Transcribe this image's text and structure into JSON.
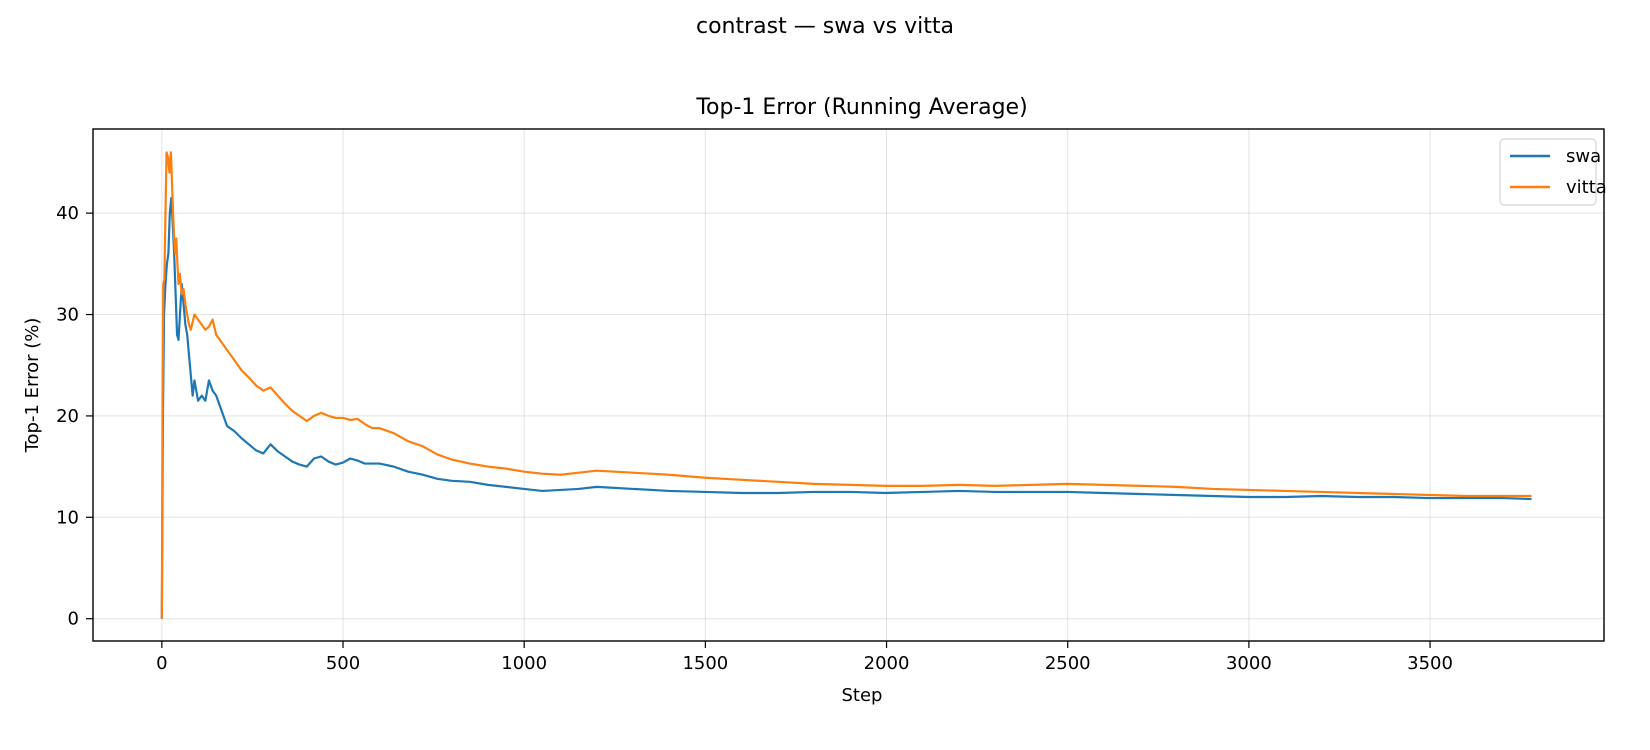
{
  "figure": {
    "suptitle": "contrast — swa vs vitta"
  },
  "chart_data": {
    "type": "line",
    "title": "Top-1 Error (Running Average)",
    "xlabel": "Step",
    "ylabel": "Top-1 Error (%)",
    "xlim": [
      -190,
      3980
    ],
    "ylim": [
      -2.2,
      48.3
    ],
    "xticks": [
      0,
      500,
      1000,
      1500,
      2000,
      2500,
      3000,
      3500
    ],
    "yticks": [
      0,
      10,
      20,
      30,
      40
    ],
    "grid": true,
    "legend_position": "top-right",
    "series": [
      {
        "name": "swa",
        "color": "#1f77b4",
        "points": [
          [
            0,
            0
          ],
          [
            3,
            20
          ],
          [
            6,
            30
          ],
          [
            10,
            33
          ],
          [
            14,
            35
          ],
          [
            18,
            36
          ],
          [
            22,
            40
          ],
          [
            26,
            41.5
          ],
          [
            30,
            39
          ],
          [
            34,
            36
          ],
          [
            38,
            32
          ],
          [
            42,
            28
          ],
          [
            46,
            27.5
          ],
          [
            50,
            30
          ],
          [
            55,
            33
          ],
          [
            60,
            31
          ],
          [
            65,
            29
          ],
          [
            70,
            28
          ],
          [
            75,
            26
          ],
          [
            80,
            24
          ],
          [
            85,
            22
          ],
          [
            90,
            23.5
          ],
          [
            95,
            22.5
          ],
          [
            100,
            21.5
          ],
          [
            110,
            22
          ],
          [
            120,
            21.5
          ],
          [
            130,
            23.5
          ],
          [
            140,
            22.5
          ],
          [
            150,
            22
          ],
          [
            160,
            21
          ],
          [
            170,
            20
          ],
          [
            180,
            19
          ],
          [
            200,
            18.5
          ],
          [
            220,
            17.8
          ],
          [
            240,
            17.2
          ],
          [
            260,
            16.6
          ],
          [
            280,
            16.3
          ],
          [
            300,
            17.2
          ],
          [
            320,
            16.5
          ],
          [
            340,
            16
          ],
          [
            360,
            15.5
          ],
          [
            380,
            15.2
          ],
          [
            400,
            15
          ],
          [
            420,
            15.8
          ],
          [
            440,
            16
          ],
          [
            460,
            15.5
          ],
          [
            480,
            15.2
          ],
          [
            500,
            15.4
          ],
          [
            520,
            15.8
          ],
          [
            540,
            15.6
          ],
          [
            560,
            15.3
          ],
          [
            600,
            15.3
          ],
          [
            640,
            15
          ],
          [
            680,
            14.5
          ],
          [
            720,
            14.2
          ],
          [
            760,
            13.8
          ],
          [
            800,
            13.6
          ],
          [
            850,
            13.5
          ],
          [
            900,
            13.2
          ],
          [
            950,
            13
          ],
          [
            1000,
            12.8
          ],
          [
            1050,
            12.6
          ],
          [
            1100,
            12.7
          ],
          [
            1150,
            12.8
          ],
          [
            1200,
            13
          ],
          [
            1250,
            12.9
          ],
          [
            1300,
            12.8
          ],
          [
            1400,
            12.6
          ],
          [
            1500,
            12.5
          ],
          [
            1600,
            12.4
          ],
          [
            1700,
            12.4
          ],
          [
            1800,
            12.5
          ],
          [
            1900,
            12.5
          ],
          [
            2000,
            12.4
          ],
          [
            2100,
            12.5
          ],
          [
            2200,
            12.6
          ],
          [
            2300,
            12.5
          ],
          [
            2400,
            12.5
          ],
          [
            2500,
            12.5
          ],
          [
            2600,
            12.4
          ],
          [
            2700,
            12.3
          ],
          [
            2800,
            12.2
          ],
          [
            2900,
            12.1
          ],
          [
            3000,
            12
          ],
          [
            3100,
            12
          ],
          [
            3200,
            12.1
          ],
          [
            3300,
            12
          ],
          [
            3400,
            12
          ],
          [
            3500,
            11.9
          ],
          [
            3600,
            11.9
          ],
          [
            3700,
            11.9
          ],
          [
            3780,
            11.8
          ]
        ]
      },
      {
        "name": "vitta",
        "color": "#ff7f0e",
        "points": [
          [
            0,
            0
          ],
          [
            2,
            22
          ],
          [
            4,
            33
          ],
          [
            7,
            33.5
          ],
          [
            10,
            40
          ],
          [
            13,
            46
          ],
          [
            17,
            45.5
          ],
          [
            21,
            44
          ],
          [
            25,
            46
          ],
          [
            28,
            43
          ],
          [
            31,
            40
          ],
          [
            34,
            37.5
          ],
          [
            37,
            36
          ],
          [
            40,
            37.5
          ],
          [
            43,
            35
          ],
          [
            46,
            33
          ],
          [
            50,
            34
          ],
          [
            55,
            32
          ],
          [
            60,
            32.5
          ],
          [
            65,
            31
          ],
          [
            70,
            30
          ],
          [
            75,
            29
          ],
          [
            80,
            28.5
          ],
          [
            90,
            30
          ],
          [
            100,
            29.5
          ],
          [
            110,
            29
          ],
          [
            120,
            28.5
          ],
          [
            130,
            28.8
          ],
          [
            140,
            29.5
          ],
          [
            150,
            28
          ],
          [
            160,
            27.5
          ],
          [
            170,
            27
          ],
          [
            180,
            26.5
          ],
          [
            200,
            25.5
          ],
          [
            220,
            24.5
          ],
          [
            240,
            23.8
          ],
          [
            260,
            23
          ],
          [
            280,
            22.5
          ],
          [
            300,
            22.8
          ],
          [
            320,
            22
          ],
          [
            340,
            21.2
          ],
          [
            360,
            20.5
          ],
          [
            380,
            20
          ],
          [
            400,
            19.5
          ],
          [
            420,
            20
          ],
          [
            440,
            20.3
          ],
          [
            460,
            20
          ],
          [
            480,
            19.8
          ],
          [
            500,
            19.8
          ],
          [
            520,
            19.6
          ],
          [
            540,
            19.7
          ],
          [
            560,
            19.2
          ],
          [
            580,
            18.8
          ],
          [
            600,
            18.8
          ],
          [
            640,
            18.3
          ],
          [
            680,
            17.5
          ],
          [
            720,
            17
          ],
          [
            760,
            16.2
          ],
          [
            800,
            15.7
          ],
          [
            850,
            15.3
          ],
          [
            900,
            15
          ],
          [
            950,
            14.8
          ],
          [
            1000,
            14.5
          ],
          [
            1050,
            14.3
          ],
          [
            1100,
            14.2
          ],
          [
            1150,
            14.4
          ],
          [
            1200,
            14.6
          ],
          [
            1250,
            14.5
          ],
          [
            1300,
            14.4
          ],
          [
            1350,
            14.3
          ],
          [
            1400,
            14.2
          ],
          [
            1500,
            13.9
          ],
          [
            1600,
            13.7
          ],
          [
            1700,
            13.5
          ],
          [
            1800,
            13.3
          ],
          [
            1900,
            13.2
          ],
          [
            2000,
            13.1
          ],
          [
            2100,
            13.1
          ],
          [
            2200,
            13.2
          ],
          [
            2300,
            13.1
          ],
          [
            2400,
            13.2
          ],
          [
            2500,
            13.3
          ],
          [
            2600,
            13.2
          ],
          [
            2700,
            13.1
          ],
          [
            2800,
            13
          ],
          [
            2900,
            12.8
          ],
          [
            3000,
            12.7
          ],
          [
            3100,
            12.6
          ],
          [
            3200,
            12.5
          ],
          [
            3300,
            12.4
          ],
          [
            3400,
            12.3
          ],
          [
            3500,
            12.2
          ],
          [
            3600,
            12.1
          ],
          [
            3700,
            12.1
          ],
          [
            3780,
            12.1
          ]
        ]
      }
    ]
  }
}
